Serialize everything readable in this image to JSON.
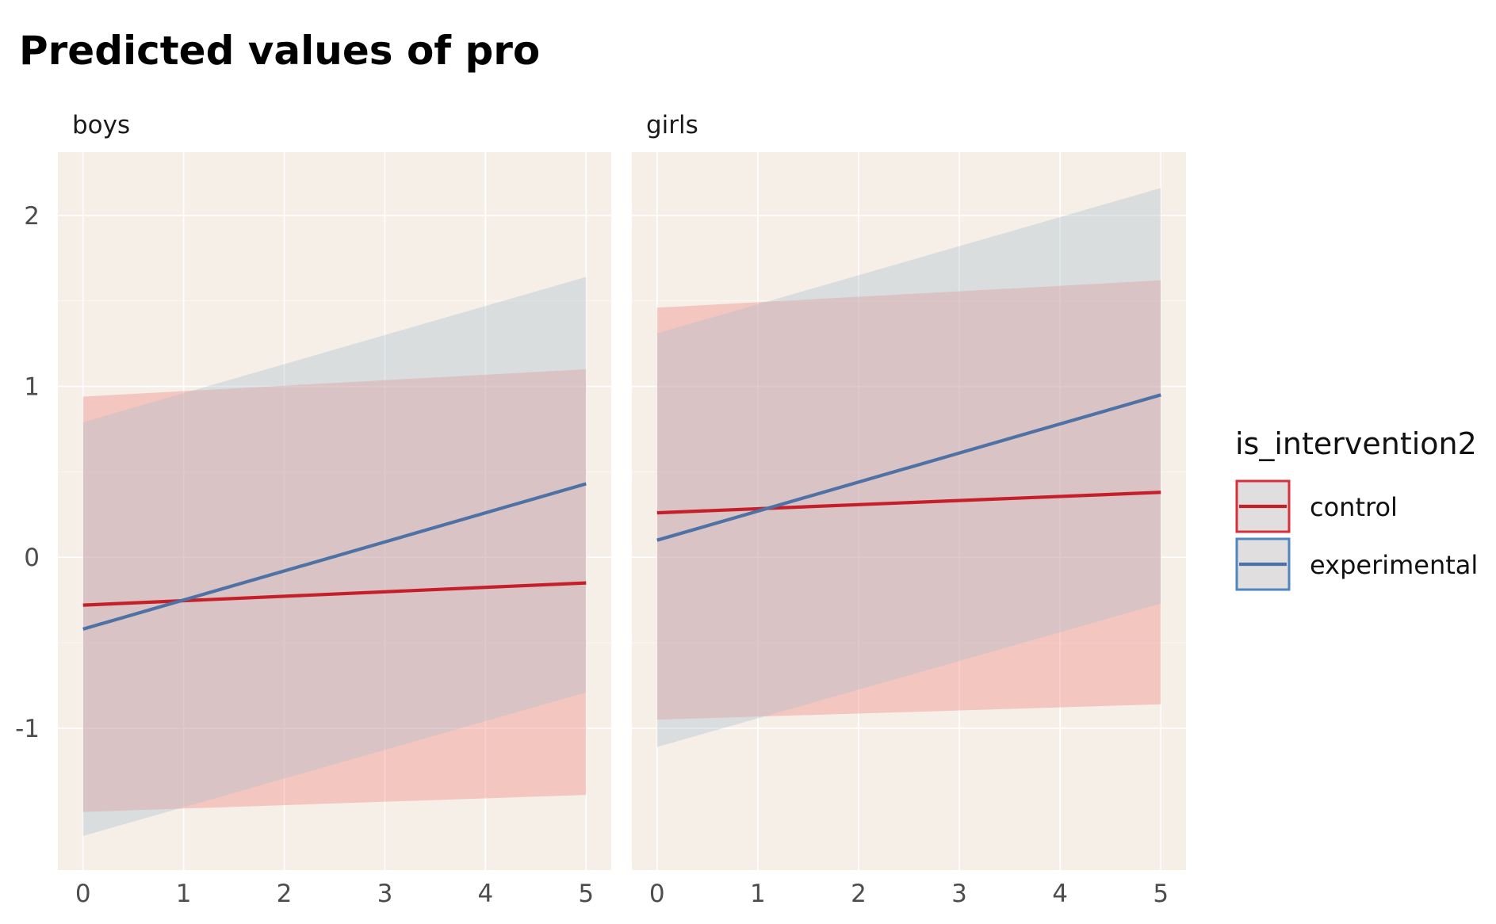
{
  "chart_data": {
    "type": "line",
    "title": "Predicted values of pro",
    "xlabel": "",
    "ylabel": "",
    "x": [
      0,
      1,
      2,
      3,
      4,
      5
    ],
    "xlim": [
      -0.25,
      5.25
    ],
    "ylim": [
      -1.83,
      2.37
    ],
    "x_ticks": [
      "0",
      "1",
      "2",
      "3",
      "4",
      "5"
    ],
    "y_ticks": [
      "-1",
      "0",
      "1",
      "2"
    ],
    "y_tick_values": [
      -1,
      0,
      1,
      2
    ],
    "grid": true,
    "legend": {
      "title": "is_intervention2",
      "position": "right",
      "entries": [
        "control",
        "experimental"
      ]
    },
    "colors": {
      "control": "#c5202a",
      "experimental": "#4f72a6",
      "control_band": "#f07a76",
      "experimental_band": "#a9bccc",
      "panel_bg": "#f5efe8",
      "grid": "#ffffff"
    },
    "facets": [
      {
        "label": "boys",
        "series": [
          {
            "name": "control",
            "x": [
              0,
              5
            ],
            "y": [
              -0.28,
              -0.15
            ],
            "lower": [
              -1.49,
              -1.39
            ],
            "upper": [
              0.94,
              1.1
            ]
          },
          {
            "name": "experimental",
            "x": [
              0,
              5
            ],
            "y": [
              -0.42,
              0.43
            ],
            "lower": [
              -1.63,
              -0.79
            ],
            "upper": [
              0.79,
              1.64
            ]
          }
        ]
      },
      {
        "label": "girls",
        "series": [
          {
            "name": "control",
            "x": [
              0,
              5
            ],
            "y": [
              0.26,
              0.38
            ],
            "lower": [
              -0.95,
              -0.86
            ],
            "upper": [
              1.46,
              1.62
            ]
          },
          {
            "name": "experimental",
            "x": [
              0,
              5
            ],
            "y": [
              0.1,
              0.95
            ],
            "lower": [
              -1.11,
              -0.27
            ],
            "upper": [
              1.31,
              2.16
            ]
          }
        ]
      }
    ]
  }
}
